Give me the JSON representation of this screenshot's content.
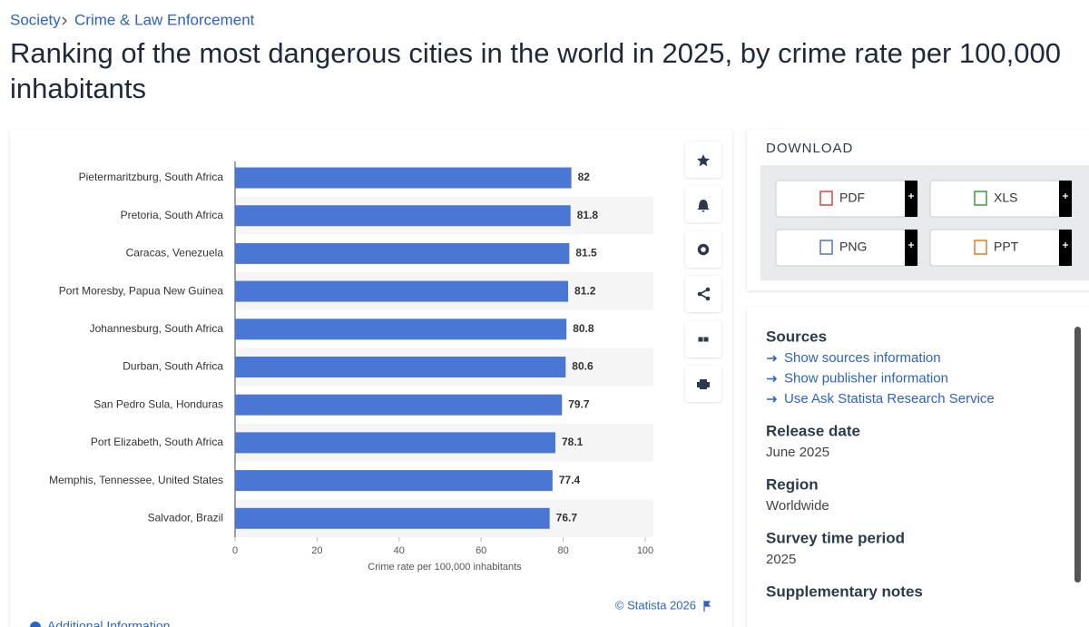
{
  "breadcrumb": [
    "Society",
    "Crime & Law Enforcement"
  ],
  "title_lines": [
    "Ranking of the most dangerous cities in the world in 2025, by crime rate per 100,000",
    "inhabitants"
  ],
  "chart_data": {
    "type": "bar",
    "orientation": "horizontal",
    "categories": [
      "Pietermaritzburg, South Africa",
      "Pretoria, South Africa",
      "Caracas, Venezuela",
      "Port Moresby, Papua New Guinea",
      "Johannesburg, South Africa",
      "Durban, South Africa",
      "San Pedro Sula, Honduras",
      "Port Elizabeth, South Africa",
      "Memphis, Tennessee, United States",
      "Salvador, Brazil"
    ],
    "values": [
      82,
      81.8,
      81.5,
      81.2,
      80.8,
      80.6,
      79.7,
      78.1,
      77.4,
      76.7
    ],
    "color": "#4a77d4",
    "xlim": [
      0,
      100
    ],
    "xticks": [
      0,
      20,
      40,
      60,
      80,
      100
    ],
    "x_label": "Crime rate per 100,000 inhabitants"
  },
  "credit": "© Statista 2026",
  "additional_info": "Additional Information",
  "download": {
    "title": "DOWNLOAD",
    "buttons": [
      "PDF",
      "XLS",
      "PNG",
      "PPT"
    ]
  },
  "sources": {
    "title": "Sources",
    "links": [
      "Show sources information",
      "Show publisher information",
      "Use Ask Statista Research Service"
    ]
  },
  "details": [
    {
      "label": "Release date",
      "value": "June 2025"
    },
    {
      "label": "Region",
      "value": "Worldwide"
    },
    {
      "label": "Survey time period",
      "value": "2025"
    }
  ],
  "supplementary": "Supplementary notes"
}
